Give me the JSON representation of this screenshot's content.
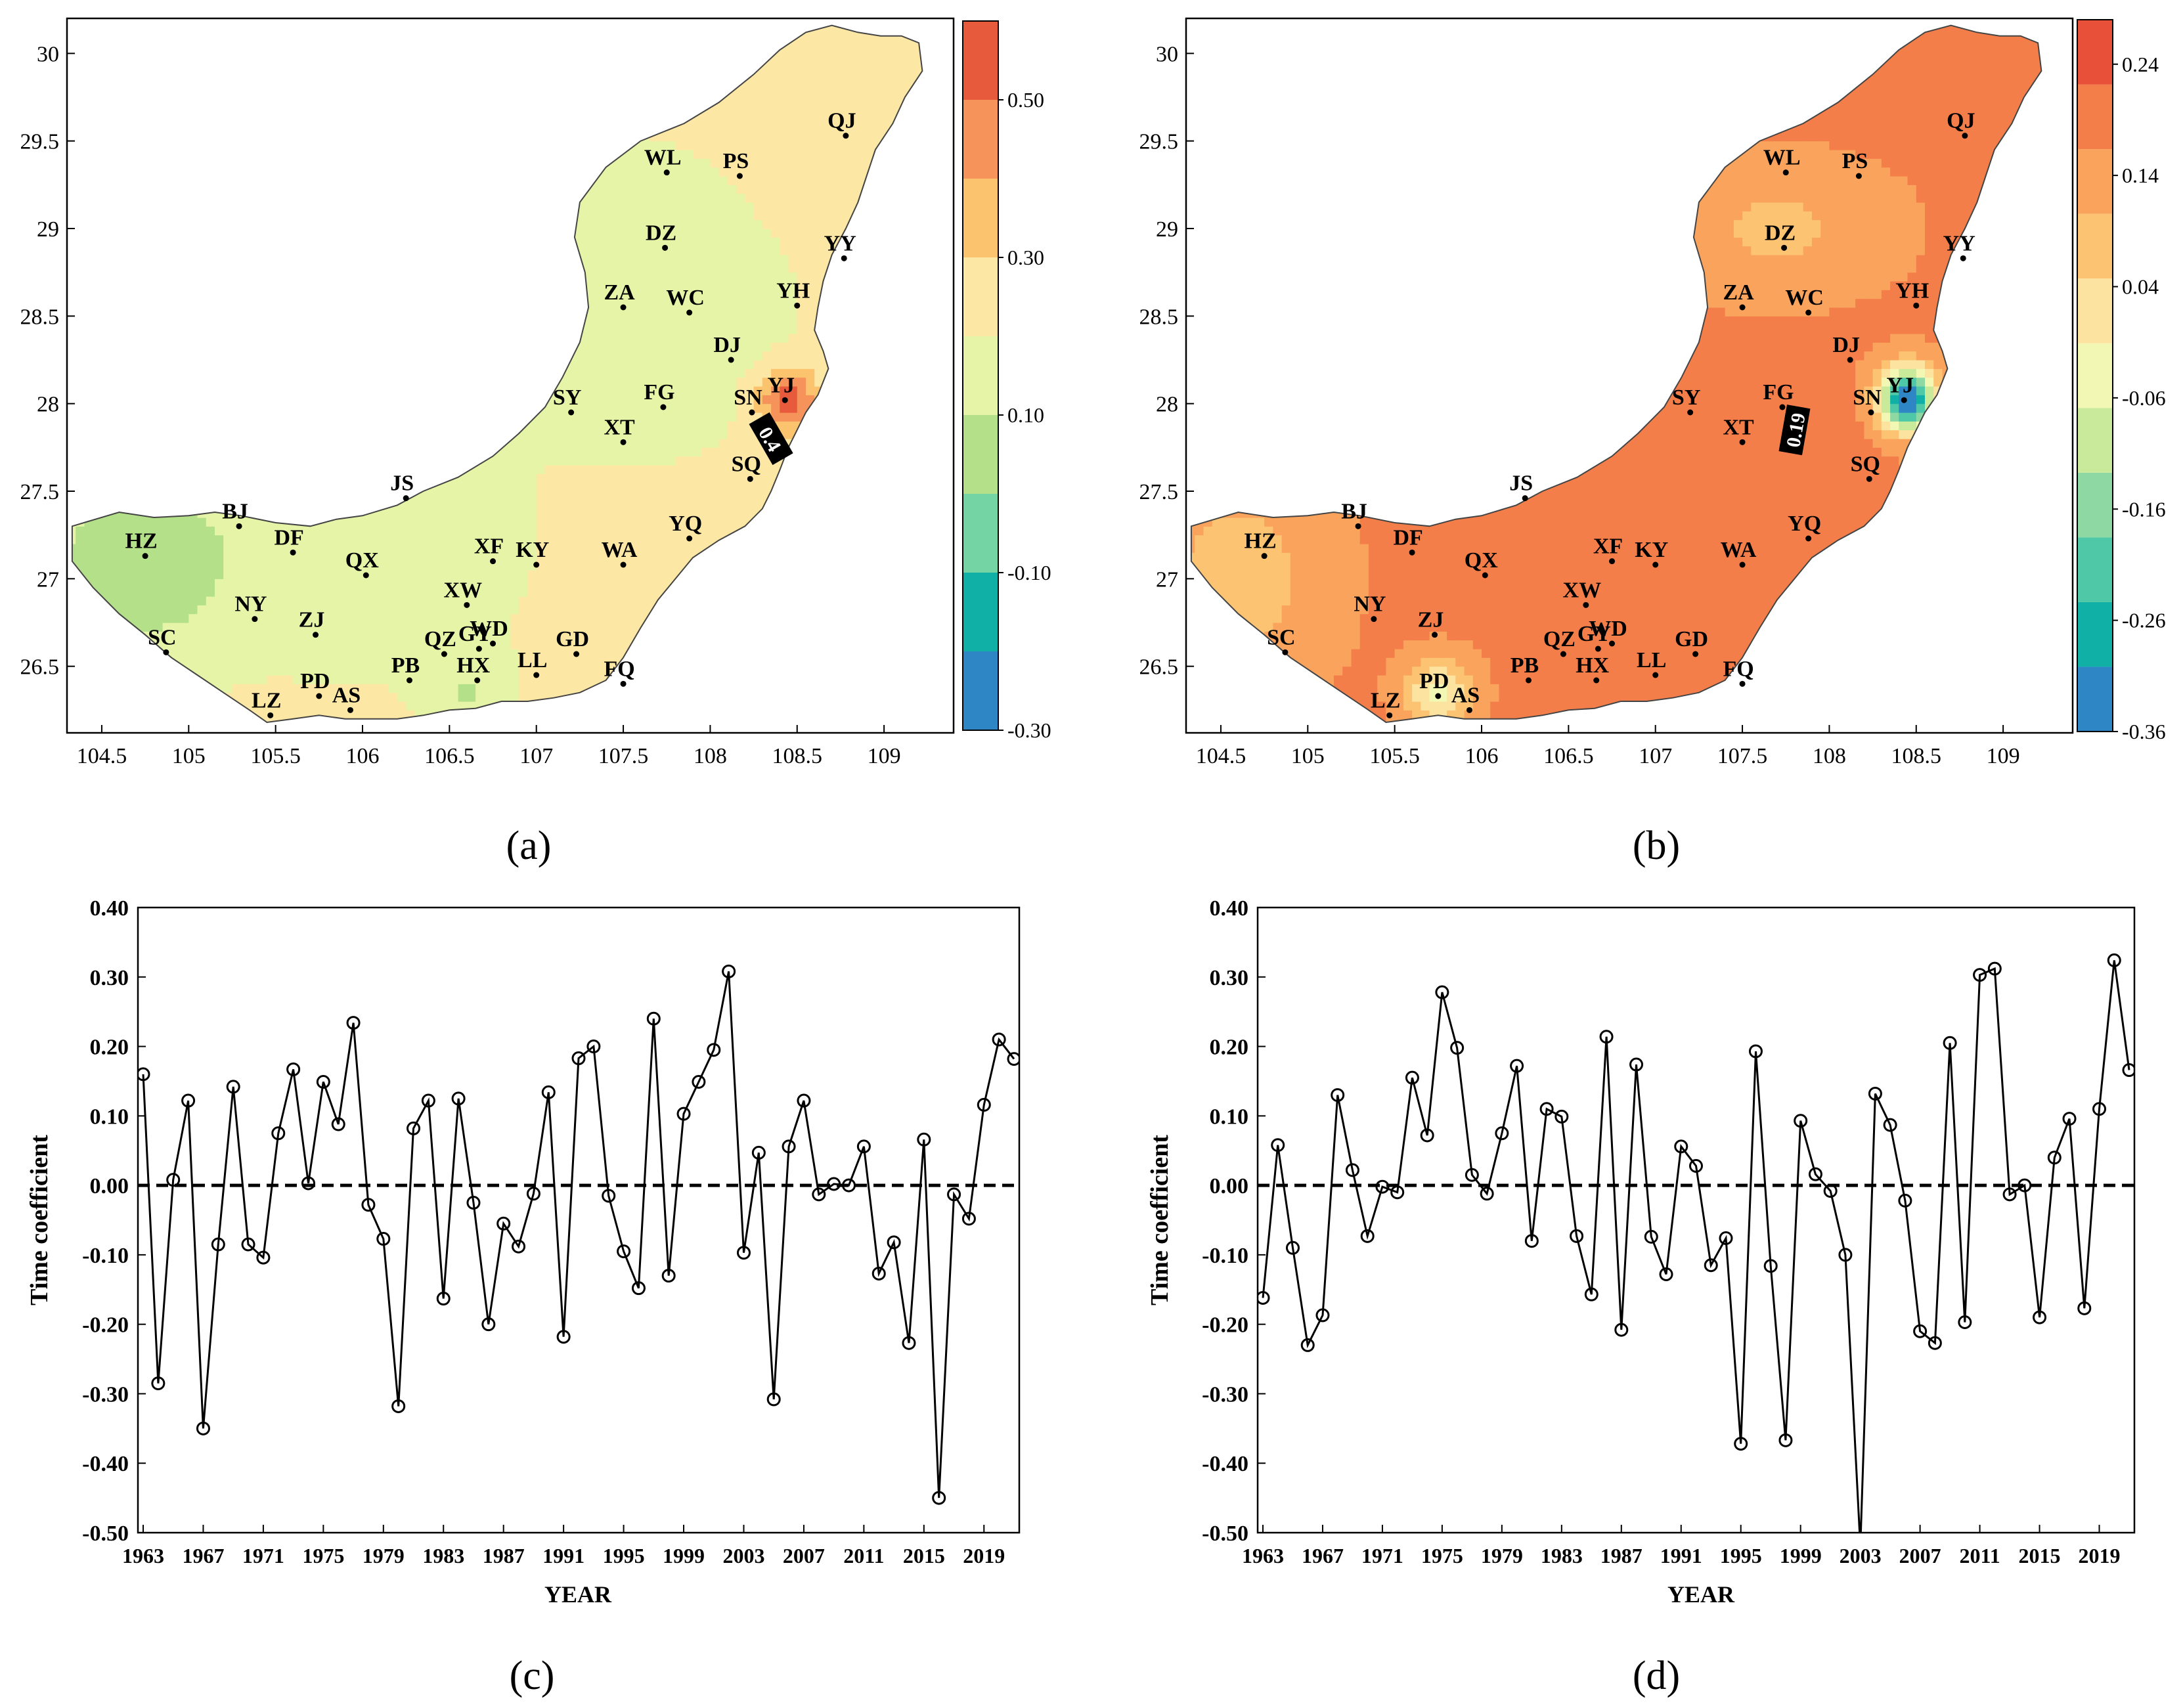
{
  "chart_data": [
    {
      "id": "a",
      "type": "heatmap",
      "subtype": "contour-map",
      "panel_label": "(a)",
      "x_ticks": [
        104.5,
        105,
        105.5,
        106,
        106.5,
        107,
        107.5,
        108,
        108.5,
        109
      ],
      "y_ticks": [
        26.5,
        27,
        27.5,
        28,
        28.5,
        29,
        29.5,
        30
      ],
      "x_tick_labels": [
        "104.5",
        "105",
        "105.5",
        "106",
        "106.5",
        "107",
        "107.5",
        "108",
        "108.5",
        "109"
      ],
      "y_tick_labels": [
        "26.5",
        "27",
        "27.5",
        "28",
        "28.5",
        "29",
        "29.5",
        "30"
      ],
      "xlim": [
        104.3,
        109.4
      ],
      "ylim": [
        26.12,
        30.2
      ],
      "colorbar": {
        "colors": [
          "#2f86c4",
          "#10b0a6",
          "#75d4a4",
          "#b4e08a",
          "#e6f4a8",
          "#fce8a4",
          "#fbc36e",
          "#f5935a",
          "#e85a3c"
        ],
        "tick_values": [
          0.5,
          0.3,
          0.1,
          -0.1,
          -0.3
        ],
        "tick_labels": [
          "0.50",
          "0.30",
          "0.10",
          "-0.10",
          "-0.30"
        ]
      },
      "contour_annotation": "0.4",
      "stations": [
        {
          "code": "QJ",
          "lon": 108.78,
          "lat": 29.53
        },
        {
          "code": "WL",
          "lon": 107.75,
          "lat": 29.32
        },
        {
          "code": "PS",
          "lon": 108.17,
          "lat": 29.3
        },
        {
          "code": "DZ",
          "lon": 107.74,
          "lat": 28.89
        },
        {
          "code": "YY",
          "lon": 108.77,
          "lat": 28.83
        },
        {
          "code": "ZA",
          "lon": 107.5,
          "lat": 28.55
        },
        {
          "code": "WC",
          "lon": 107.88,
          "lat": 28.52
        },
        {
          "code": "YH",
          "lon": 108.5,
          "lat": 28.56
        },
        {
          "code": "DJ",
          "lon": 108.12,
          "lat": 28.25
        },
        {
          "code": "SY",
          "lon": 107.2,
          "lat": 27.95
        },
        {
          "code": "FG",
          "lon": 107.73,
          "lat": 27.98
        },
        {
          "code": "YJ",
          "lon": 108.43,
          "lat": 28.02
        },
        {
          "code": "SN",
          "lon": 108.24,
          "lat": 27.95
        },
        {
          "code": "XT",
          "lon": 107.5,
          "lat": 27.78
        },
        {
          "code": "SQ",
          "lon": 108.23,
          "lat": 27.57
        },
        {
          "code": "JS",
          "lon": 106.25,
          "lat": 27.46
        },
        {
          "code": "BJ",
          "lon": 105.29,
          "lat": 27.3
        },
        {
          "code": "YQ",
          "lon": 107.88,
          "lat": 27.23
        },
        {
          "code": "HZ",
          "lon": 104.75,
          "lat": 27.13
        },
        {
          "code": "DF",
          "lon": 105.6,
          "lat": 27.15
        },
        {
          "code": "XF",
          "lon": 106.75,
          "lat": 27.1
        },
        {
          "code": "KY",
          "lon": 107.0,
          "lat": 27.08
        },
        {
          "code": "WA",
          "lon": 107.5,
          "lat": 27.08
        },
        {
          "code": "QX",
          "lon": 106.02,
          "lat": 27.02
        },
        {
          "code": "XW",
          "lon": 106.6,
          "lat": 26.85
        },
        {
          "code": "NY",
          "lon": 105.38,
          "lat": 26.77
        },
        {
          "code": "ZJ",
          "lon": 105.73,
          "lat": 26.68
        },
        {
          "code": "QZ",
          "lon": 106.47,
          "lat": 26.57
        },
        {
          "code": "GY",
          "lon": 106.67,
          "lat": 26.6
        },
        {
          "code": "WD",
          "lon": 106.75,
          "lat": 26.63
        },
        {
          "code": "GD",
          "lon": 107.23,
          "lat": 26.57
        },
        {
          "code": "SC",
          "lon": 104.87,
          "lat": 26.58
        },
        {
          "code": "LL",
          "lon": 107.0,
          "lat": 26.45
        },
        {
          "code": "HX",
          "lon": 106.66,
          "lat": 26.42
        },
        {
          "code": "PB",
          "lon": 106.27,
          "lat": 26.42
        },
        {
          "code": "FQ",
          "lon": 107.5,
          "lat": 26.4
        },
        {
          "code": "PD",
          "lon": 105.75,
          "lat": 26.33
        },
        {
          "code": "AS",
          "lon": 105.93,
          "lat": 26.25
        },
        {
          "code": "LZ",
          "lon": 105.47,
          "lat": 26.22
        }
      ]
    },
    {
      "id": "b",
      "type": "heatmap",
      "subtype": "contour-map",
      "panel_label": "(b)",
      "x_ticks": [
        104.5,
        105,
        105.5,
        106,
        106.5,
        107,
        107.5,
        108,
        108.5,
        109
      ],
      "y_ticks": [
        26.5,
        27,
        27.5,
        28,
        28.5,
        29,
        29.5,
        30
      ],
      "x_tick_labels": [
        "104.5",
        "105",
        "105.5",
        "106",
        "106.5",
        "107",
        "107.5",
        "108",
        "108.5",
        "109"
      ],
      "y_tick_labels": [
        "26.5",
        "27",
        "27.5",
        "28",
        "28.5",
        "29",
        "29.5",
        "30"
      ],
      "xlim": [
        104.3,
        109.4
      ],
      "ylim": [
        26.12,
        30.2
      ],
      "colorbar": {
        "colors": [
          "#2f86c4",
          "#10b0a6",
          "#4ec8a6",
          "#8ed8a4",
          "#c8ea9a",
          "#f2f7b4",
          "#fde3a0",
          "#fcc472",
          "#f9a35d",
          "#f47e4a",
          "#e8503a"
        ],
        "tick_values": [
          0.24,
          0.14,
          0.04,
          -0.06,
          -0.16,
          -0.26,
          -0.36
        ],
        "tick_labels": [
          "0.24",
          "0.14",
          "0.04",
          "-0.06",
          "-0.16",
          "-0.26",
          "-0.36"
        ]
      },
      "contour_annotation": "0.19"
    },
    {
      "id": "c",
      "type": "line",
      "panel_label": "(c)",
      "xlabel": "YEAR",
      "ylabel": "Time coefficient",
      "ylim": [
        -0.5,
        0.4
      ],
      "y_ticks": [
        0.4,
        0.3,
        0.2,
        0.1,
        0.0,
        -0.1,
        -0.2,
        -0.3,
        -0.4,
        -0.5
      ],
      "y_tick_labels": [
        "0.40",
        "0.30",
        "0.20",
        "0.10",
        "0.00",
        "-0.10",
        "-0.20",
        "-0.30",
        "-0.40",
        "-0.50"
      ],
      "x_tick_labels": [
        "1963",
        "1967",
        "1971",
        "1975",
        "1979",
        "1983",
        "1987",
        "1991",
        "1995",
        "1999",
        "2003",
        "2007",
        "2011",
        "2015",
        "2019"
      ],
      "x": [
        1963,
        1964,
        1965,
        1966,
        1967,
        1968,
        1969,
        1970,
        1971,
        1972,
        1973,
        1974,
        1975,
        1976,
        1977,
        1978,
        1979,
        1980,
        1981,
        1982,
        1983,
        1984,
        1985,
        1986,
        1987,
        1988,
        1989,
        1990,
        1991,
        1992,
        1993,
        1994,
        1995,
        1996,
        1997,
        1998,
        1999,
        2000,
        2001,
        2002,
        2003,
        2004,
        2005,
        2006,
        2007,
        2008,
        2009,
        2010,
        2011,
        2012,
        2013,
        2014,
        2015,
        2016,
        2017,
        2018,
        2019,
        2020,
        2021
      ],
      "values": [
        0.16,
        -0.285,
        0.008,
        0.122,
        -0.35,
        -0.085,
        0.142,
        -0.085,
        -0.104,
        0.075,
        0.167,
        0.003,
        0.149,
        0.088,
        0.234,
        -0.028,
        -0.077,
        -0.318,
        0.082,
        0.122,
        -0.163,
        0.125,
        -0.025,
        -0.2,
        -0.055,
        -0.088,
        -0.012,
        0.134,
        -0.218,
        0.183,
        0.2,
        -0.015,
        -0.095,
        -0.148,
        0.24,
        -0.13,
        0.103,
        0.149,
        0.195,
        0.308,
        -0.097,
        0.047,
        -0.308,
        0.056,
        0.122,
        -0.013,
        0.002,
        0.0,
        0.056,
        -0.127,
        -0.082,
        -0.227,
        0.066,
        -0.45,
        -0.013,
        -0.048,
        0.116,
        0.21,
        0.182
      ],
      "reference_line": 0.0
    },
    {
      "id": "d",
      "type": "line",
      "panel_label": "(d)",
      "xlabel": "YEAR",
      "ylabel": "Time coefficient",
      "ylim": [
        -0.5,
        0.4
      ],
      "y_ticks": [
        0.4,
        0.3,
        0.2,
        0.1,
        0.0,
        -0.1,
        -0.2,
        -0.3,
        -0.4,
        -0.5
      ],
      "y_tick_labels": [
        "0.40",
        "0.30",
        "0.20",
        "0.10",
        "0.00",
        "-0.10",
        "-0.20",
        "-0.30",
        "-0.40",
        "-0.50"
      ],
      "x_tick_labels": [
        "1963",
        "1967",
        "1971",
        "1975",
        "1979",
        "1983",
        "1987",
        "1991",
        "1995",
        "1999",
        "2003",
        "2007",
        "2011",
        "2015",
        "2019"
      ],
      "x": [
        1963,
        1964,
        1965,
        1966,
        1967,
        1968,
        1969,
        1970,
        1971,
        1972,
        1973,
        1974,
        1975,
        1976,
        1977,
        1978,
        1979,
        1980,
        1981,
        1982,
        1983,
        1984,
        1985,
        1986,
        1987,
        1988,
        1989,
        1990,
        1991,
        1992,
        1993,
        1994,
        1995,
        1996,
        1997,
        1998,
        1999,
        2000,
        2001,
        2002,
        2003,
        2004,
        2005,
        2006,
        2007,
        2008,
        2009,
        2010,
        2011,
        2012,
        2013,
        2014,
        2015,
        2016,
        2017,
        2018,
        2019,
        2020,
        2021
      ],
      "values": [
        -0.162,
        0.058,
        -0.09,
        -0.23,
        -0.187,
        0.13,
        0.022,
        -0.073,
        -0.002,
        -0.01,
        0.155,
        0.072,
        0.278,
        0.198,
        0.015,
        -0.012,
        0.075,
        0.172,
        -0.08,
        0.11,
        0.099,
        -0.073,
        -0.157,
        0.214,
        -0.208,
        0.174,
        -0.074,
        -0.128,
        0.056,
        0.028,
        -0.115,
        -0.076,
        -0.372,
        0.193,
        -0.116,
        -0.367,
        0.093,
        0.016,
        -0.008,
        -0.1,
        -0.52,
        0.132,
        0.087,
        -0.022,
        -0.21,
        -0.227,
        0.205,
        -0.197,
        0.303,
        0.312,
        -0.013,
        0.0,
        -0.19,
        0.04,
        0.096,
        -0.177,
        0.11,
        0.324,
        0.166
      ],
      "reference_line": 0.0
    }
  ]
}
